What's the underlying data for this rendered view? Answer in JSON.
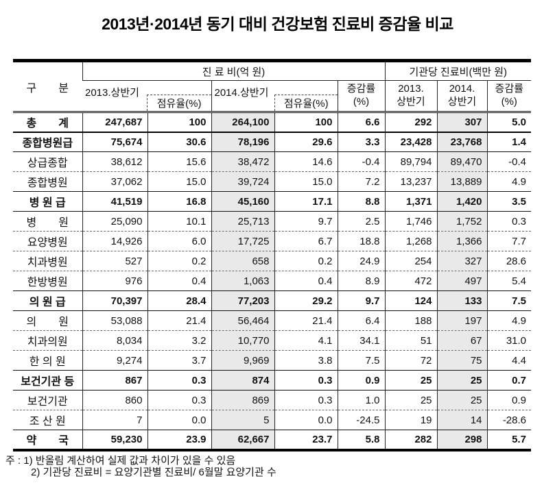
{
  "title": "2013년·2014년 동기 대비 건강보험 진료비 증감율 비교",
  "colors": {
    "shade": "#e9e9e9",
    "border": "#222222",
    "text": "#111111"
  },
  "table": {
    "corner_header": "구　　분",
    "group_headers": {
      "expense": "진 료 비(억 원)",
      "per_institution": "기관당 진료비(백만 원)"
    },
    "sub_headers": {
      "h2013": "2013.상반기",
      "share2013": "점유율(%)",
      "h2014": "2014.상반기",
      "share2014": "점유율(%)",
      "change_l1": "증감률",
      "change_l2": "(%)",
      "inst2013_l1": "2013.",
      "inst2013_l2": "상반기",
      "inst2014_l1": "2014.",
      "inst2014_l2": "상반기",
      "inst_change_l1": "증감률",
      "inst_change_l2": "(%)"
    },
    "shaded_value_columns": [
      2,
      6
    ],
    "rows": [
      {
        "label": "총　　계",
        "bold": true,
        "sep": "none",
        "values": [
          "247,687",
          "100",
          "264,100",
          "100",
          "6.6",
          "292",
          "307",
          "5.0"
        ]
      },
      {
        "label": "종합병원급",
        "bold": true,
        "sep": "thick",
        "values": [
          "75,674",
          "30.6",
          "78,196",
          "29.6",
          "3.3",
          "23,428",
          "23,768",
          "1.4"
        ]
      },
      {
        "label": "상급종합",
        "bold": false,
        "sep": "solid",
        "values": [
          "38,612",
          "15.6",
          "38,472",
          "14.6",
          "-0.4",
          "89,794",
          "89,470",
          "-0.4"
        ]
      },
      {
        "label": "종합병원",
        "bold": false,
        "sep": "dashed",
        "values": [
          "37,062",
          "15.0",
          "39,724",
          "15.0",
          "7.2",
          "13,237",
          "13,889",
          "4.9"
        ]
      },
      {
        "label": "병 원 급",
        "bold": true,
        "sep": "solid",
        "values": [
          "41,519",
          "16.8",
          "45,160",
          "17.1",
          "8.8",
          "1,371",
          "1,420",
          "3.5"
        ]
      },
      {
        "label": "병　　원",
        "bold": false,
        "sep": "solid",
        "values": [
          "25,090",
          "10.1",
          "25,713",
          "9.7",
          "2.5",
          "1,746",
          "1,752",
          "0.3"
        ]
      },
      {
        "label": "요양병원",
        "bold": false,
        "sep": "dashed",
        "values": [
          "14,926",
          "6.0",
          "17,725",
          "6.7",
          "18.8",
          "1,268",
          "1,366",
          "7.7"
        ]
      },
      {
        "label": "치과병원",
        "bold": false,
        "sep": "dashed",
        "values": [
          "527",
          "0.2",
          "658",
          "0.2",
          "24.9",
          "254",
          "327",
          "28.6"
        ]
      },
      {
        "label": "한방병원",
        "bold": false,
        "sep": "dashed",
        "values": [
          "976",
          "0.4",
          "1,063",
          "0.4",
          "8.9",
          "472",
          "497",
          "5.4"
        ]
      },
      {
        "label": "의 원 급",
        "bold": true,
        "sep": "solid",
        "values": [
          "70,397",
          "28.4",
          "77,203",
          "29.2",
          "9.7",
          "124",
          "133",
          "7.5"
        ]
      },
      {
        "label": "의　　원",
        "bold": false,
        "sep": "solid",
        "values": [
          "53,088",
          "21.4",
          "56,464",
          "21.4",
          "6.4",
          "188",
          "197",
          "4.9"
        ]
      },
      {
        "label": "치과의원",
        "bold": false,
        "sep": "dashed",
        "values": [
          "8,034",
          "3.2",
          "10,770",
          "4.1",
          "34.1",
          "51",
          "67",
          "31.0"
        ]
      },
      {
        "label": "한 의 원",
        "bold": false,
        "sep": "dashed",
        "values": [
          "9,274",
          "3.7",
          "9,969",
          "3.8",
          "7.5",
          "72",
          "75",
          "4.4"
        ]
      },
      {
        "label": "보건기관 등",
        "bold": true,
        "sep": "solid",
        "values": [
          "867",
          "0.3",
          "874",
          "0.3",
          "0.9",
          "25",
          "25",
          "0.7"
        ]
      },
      {
        "label": "보건기관",
        "bold": false,
        "sep": "solid",
        "values": [
          "860",
          "0.3",
          "869",
          "0.3",
          "1.0",
          "25",
          "25",
          "0.9"
        ]
      },
      {
        "label": "조 산 원",
        "bold": false,
        "sep": "dashed",
        "values": [
          "7",
          "0.0",
          "5",
          "0.0",
          "-24.5",
          "19",
          "14",
          "-28.6"
        ]
      },
      {
        "label": "약　　국",
        "bold": true,
        "sep": "solid",
        "values": [
          "59,230",
          "23.9",
          "62,667",
          "23.7",
          "5.8",
          "282",
          "298",
          "5.7"
        ]
      }
    ]
  },
  "footnotes": [
    "주 : 1) 반올림 계산하여 실제 값과 차이가 있을 수 있음",
    "2) 기관당 진료비 = 요양기관별 진료비/ 6월말 요양기관 수"
  ]
}
